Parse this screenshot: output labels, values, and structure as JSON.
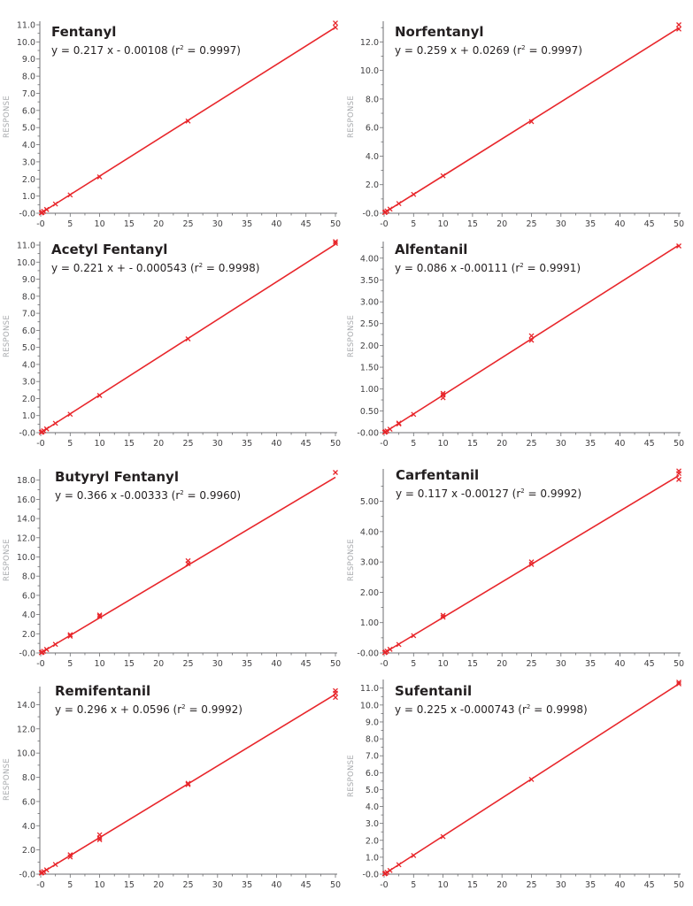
{
  "colors": {
    "line": "#e8262b",
    "marker": "#e8262b",
    "axis": "#6d6e71",
    "tick_text": "#414042",
    "ylabel": "#a7a9ac",
    "title": "#231f20"
  },
  "chart_data": [
    {
      "type": "scatter",
      "title": "Fentanyl",
      "equation_prefix": "y = 0.217 x - 0.00108 (r",
      "equation_suffix": " = 0.9997)",
      "slope": 0.217,
      "intercept": -0.00108,
      "r2": 0.9997,
      "xlabel": "",
      "ylabel": "RESPONSE",
      "xlim": [
        0,
        50
      ],
      "ylim": [
        0,
        11.0
      ],
      "x_ticks": [
        "-0",
        "5",
        "10",
        "15",
        "20",
        "25",
        "30",
        "35",
        "40",
        "45",
        "50"
      ],
      "y_ticks": [
        "-0.0",
        "1.0",
        "2.0",
        "3.0",
        "4.0",
        "5.0",
        "6.0",
        "7.0",
        "8.0",
        "9.0",
        "10.0",
        "11.0"
      ],
      "y_tick_values": [
        0,
        1,
        2,
        3,
        4,
        5,
        6,
        7,
        8,
        9,
        10,
        11
      ],
      "points": {
        "x": [
          0.1,
          0.25,
          0.5,
          1,
          2.5,
          5,
          10,
          25,
          50,
          50
        ],
        "y": [
          0.02,
          0.05,
          0.11,
          0.22,
          0.54,
          1.07,
          2.12,
          5.38,
          10.85,
          11.1
        ]
      },
      "grid": false,
      "legend": "none"
    },
    {
      "type": "scatter",
      "title": "Norfentanyl",
      "equation_prefix": "y = 0.259 x + 0.0269 (r",
      "equation_suffix": " = 0.9997)",
      "slope": 0.259,
      "intercept": 0.0269,
      "r2": 0.9997,
      "xlabel": "",
      "ylabel": "RESPONSE",
      "xlim": [
        0,
        50
      ],
      "ylim": [
        0,
        13.2
      ],
      "x_ticks": [
        "-0",
        "5",
        "10",
        "15",
        "20",
        "25",
        "30",
        "35",
        "40",
        "45",
        "50"
      ],
      "y_ticks": [
        "-0.0",
        "2.0",
        "4.0",
        "6.0",
        "8.0",
        "10.0",
        "12.0"
      ],
      "y_tick_values": [
        0,
        2,
        4,
        6,
        8,
        10,
        12
      ],
      "points": {
        "x": [
          0.1,
          0.25,
          0.5,
          1,
          2.5,
          5,
          10,
          25,
          50,
          50
        ],
        "y": [
          0.05,
          0.09,
          0.16,
          0.29,
          0.68,
          1.32,
          2.62,
          6.42,
          12.9,
          13.2
        ]
      },
      "grid": false,
      "legend": "none"
    },
    {
      "type": "scatter",
      "title": "Acetyl Fentanyl",
      "equation_prefix": "y = 0.221 x + - 0.000543 (r",
      "equation_suffix": " = 0.9998)",
      "slope": 0.221,
      "intercept": -0.000543,
      "r2": 0.9998,
      "xlabel": "",
      "ylabel": "RESPONSE",
      "xlim": [
        0,
        50
      ],
      "ylim": [
        0,
        11.0
      ],
      "x_ticks": [
        "-0",
        "5",
        "10",
        "15",
        "20",
        "25",
        "30",
        "35",
        "40",
        "45",
        "50"
      ],
      "y_ticks": [
        "-0.0",
        "1.0",
        "2.0",
        "3.0",
        "4.0",
        "5.0",
        "6.0",
        "7.0",
        "8.0",
        "9.0",
        "10.0",
        "11.0"
      ],
      "y_tick_values": [
        0,
        1,
        2,
        3,
        4,
        5,
        6,
        7,
        8,
        9,
        10,
        11
      ],
      "points": {
        "x": [
          0.1,
          0.25,
          0.5,
          1,
          2.5,
          5,
          10,
          25,
          50,
          50
        ],
        "y": [
          0.02,
          0.05,
          0.11,
          0.22,
          0.55,
          1.08,
          2.18,
          5.5,
          11.1,
          11.2
        ]
      },
      "grid": false,
      "legend": "none"
    },
    {
      "type": "scatter",
      "title": "Alfentanil",
      "equation_prefix": "y = 0.086 x -0.00111 (r",
      "equation_suffix": " = 0.9991)",
      "slope": 0.086,
      "intercept": -0.00111,
      "r2": 0.9991,
      "xlabel": "",
      "ylabel": "RESPONSE",
      "xlim": [
        0,
        50
      ],
      "ylim": [
        0,
        4.3
      ],
      "x_ticks": [
        "-0",
        "5",
        "10",
        "15",
        "20",
        "25",
        "30",
        "35",
        "40",
        "45",
        "50"
      ],
      "y_ticks": [
        "-0.00",
        "0.50",
        "1.00",
        "1.50",
        "2.00",
        "2.50",
        "3.00",
        "3.50",
        "4.00"
      ],
      "y_tick_values": [
        0,
        0.5,
        1.0,
        1.5,
        2.0,
        2.5,
        3.0,
        3.5,
        4.0
      ],
      "points": {
        "x": [
          0.1,
          0.25,
          0.5,
          1,
          2.5,
          2.5,
          5,
          10,
          10,
          10,
          25,
          25,
          50
        ],
        "y": [
          0.01,
          0.02,
          0.04,
          0.08,
          0.2,
          0.22,
          0.42,
          0.8,
          0.86,
          0.9,
          2.12,
          2.22,
          4.28
        ]
      },
      "grid": false,
      "legend": "none"
    },
    {
      "type": "scatter",
      "title": "Butyryl Fentanyl",
      "equation_prefix": "y = 0.366 x -0.00333 (r",
      "equation_suffix": " = 0.9960)",
      "slope": 0.366,
      "intercept": -0.00333,
      "r2": 0.996,
      "xlabel": "",
      "ylabel": "RESPONSE",
      "xlim": [
        0,
        50
      ],
      "ylim": [
        0,
        18.8
      ],
      "x_ticks": [
        "-0",
        "5",
        "10",
        "15",
        "20",
        "25",
        "30",
        "35",
        "40",
        "45",
        "50"
      ],
      "y_ticks": [
        "-0.0",
        "2.0",
        "4.0",
        "6.0",
        "8.0",
        "10.0",
        "12.0",
        "14.0",
        "16.0",
        "18.0"
      ],
      "y_tick_values": [
        0,
        2,
        4,
        6,
        8,
        10,
        12,
        14,
        16,
        18
      ],
      "points": {
        "x": [
          0.1,
          0.25,
          0.5,
          1,
          2.5,
          5,
          5,
          10,
          10,
          25,
          25,
          50
        ],
        "y": [
          0.03,
          0.08,
          0.18,
          0.37,
          0.9,
          1.75,
          1.9,
          3.8,
          3.95,
          9.3,
          9.6,
          18.8
        ]
      },
      "grid": false,
      "legend": "none"
    },
    {
      "type": "scatter",
      "title": "Carfentanil",
      "equation_prefix": "y = 0.117 x -0.00127 (r",
      "equation_suffix": " = 0.9992)",
      "slope": 0.117,
      "intercept": -0.00127,
      "r2": 0.9992,
      "xlabel": "",
      "ylabel": "RESPONSE",
      "xlim": [
        0,
        50
      ],
      "ylim": [
        0,
        5.95
      ],
      "x_ticks": [
        "-0",
        "5",
        "10",
        "15",
        "20",
        "25",
        "30",
        "35",
        "40",
        "45",
        "50"
      ],
      "y_ticks": [
        "-0.00",
        "1.00",
        "2.00",
        "3.00",
        "4.00",
        "5.00"
      ],
      "y_tick_values": [
        0,
        1,
        2,
        3,
        4,
        5
      ],
      "points": {
        "x": [
          0.1,
          0.25,
          0.5,
          1,
          2.5,
          5,
          10,
          10,
          25,
          25,
          50,
          50,
          50
        ],
        "y": [
          0.01,
          0.03,
          0.06,
          0.12,
          0.28,
          0.57,
          1.18,
          1.24,
          2.92,
          3.0,
          5.72,
          5.92,
          6.0
        ]
      },
      "grid": false,
      "legend": "none"
    },
    {
      "type": "scatter",
      "title": "Remifentanil",
      "equation_prefix": "y = 0.296 x + 0.0596 (r",
      "equation_suffix": " = 0.9992)",
      "slope": 0.296,
      "intercept": 0.0596,
      "r2": 0.9992,
      "xlabel": "",
      "ylabel": "RESPONSE",
      "xlim": [
        0,
        50
      ],
      "ylim": [
        0,
        15.2
      ],
      "x_ticks": [
        "-0",
        "5",
        "10",
        "15",
        "20",
        "25",
        "30",
        "35",
        "40",
        "45",
        "50"
      ],
      "y_ticks": [
        "-0.0",
        "2.0",
        "4.0",
        "6.0",
        "8.0",
        "10.0",
        "12.0",
        "14.0"
      ],
      "y_tick_values": [
        0,
        2,
        4,
        6,
        8,
        10,
        12,
        14
      ],
      "points": {
        "x": [
          0.1,
          0.25,
          0.5,
          1,
          2.5,
          5,
          5,
          10,
          10,
          10,
          25,
          25,
          50,
          50,
          50
        ],
        "y": [
          0.09,
          0.13,
          0.21,
          0.35,
          0.8,
          1.42,
          1.6,
          2.85,
          3.0,
          3.25,
          7.4,
          7.5,
          14.6,
          14.95,
          15.15
        ]
      },
      "grid": false,
      "legend": "none"
    },
    {
      "type": "scatter",
      "title": "Sufentanil",
      "equation_prefix": "y = 0.225 x -0.000743 (r",
      "equation_suffix": " = 0.9998)",
      "slope": 0.225,
      "intercept": -0.000743,
      "r2": 0.9998,
      "xlabel": "",
      "ylabel": "RESPONSE",
      "xlim": [
        0,
        50
      ],
      "ylim": [
        0,
        11.3
      ],
      "x_ticks": [
        "-0",
        "5",
        "10",
        "15",
        "20",
        "25",
        "30",
        "35",
        "40",
        "45",
        "50"
      ],
      "y_ticks": [
        "-0.0",
        "1.0",
        "2.0",
        "3.0",
        "4.0",
        "5.0",
        "6.0",
        "7.0",
        "8.0",
        "9.0",
        "10.0",
        "11.0"
      ],
      "y_tick_values": [
        0,
        1,
        2,
        3,
        4,
        5,
        6,
        7,
        8,
        9,
        10,
        11
      ],
      "points": {
        "x": [
          0.1,
          0.25,
          0.5,
          1,
          2.5,
          5,
          10,
          25,
          50,
          50
        ],
        "y": [
          0.02,
          0.05,
          0.11,
          0.22,
          0.56,
          1.1,
          2.22,
          5.6,
          11.25,
          11.35
        ]
      },
      "grid": false,
      "legend": "none"
    }
  ]
}
